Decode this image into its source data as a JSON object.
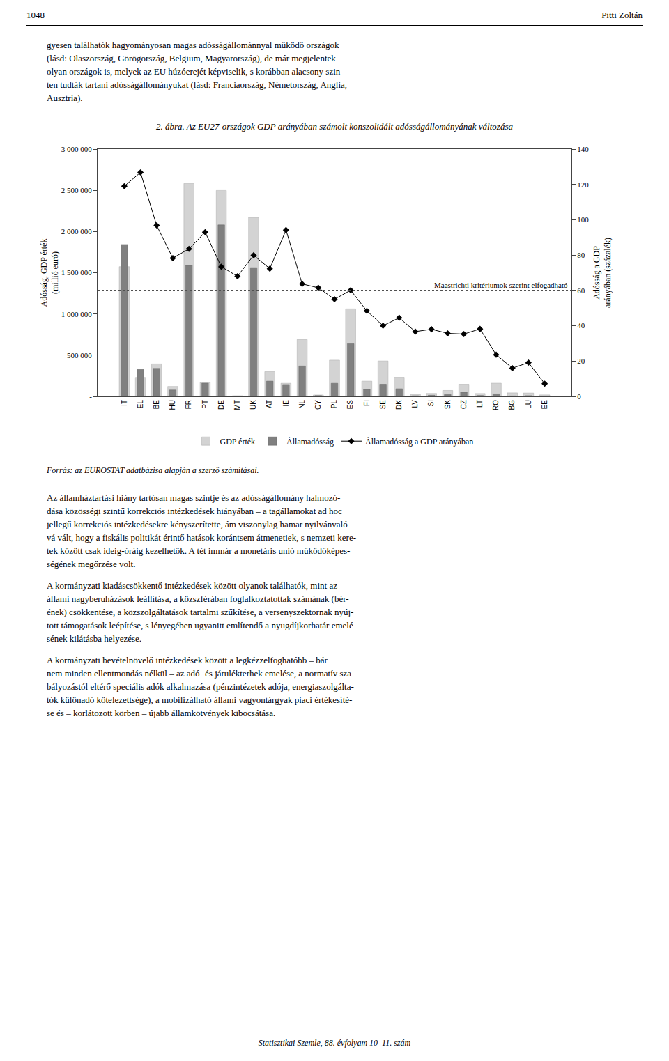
{
  "page": {
    "header_left": "1048",
    "header_right": "Pitti Zoltán",
    "top_text": "gyesen találhatók hagyományosan magas adósságállománnyal működő országok\n(lásd: Olaszország, Görögország, Belgium, Magyarország), de már megjelentek\nolyan országok is, melyek az EU húzóerejét képviselik, s korábban alacsony szin-\nten tudták tartani adósságállományukat (lásd: Franciaország, Németország, Anglia,\nAusztria).",
    "source": "Forrás: az EUROSTAT adatbázisa alapján a szerző számításai.",
    "paragraphs": [
      "Az államháztartási hiány tartósan magas szintje és az adósságállomány halmozó-\ndása közösségi szintű korrekciós intézkedések hiányában – a tagállamokat ad hoc\njellegű korrekciós intézkedésekre kényszerítette, ám viszonylag hamar nyilvánvaló-\nvá vált, hogy a fiskális politikát érintő hatások korántsem átmenetiek, s nemzeti kere-\ntek között csak ideig-óráig kezelhetők. A tét immár a monetáris unió működőképes-\nségének megőrzése volt.",
      "A kormányzati kiadáscsökkentő intézkedések között olyanok találhatók, mint az\nállami nagyberuházások leállítása, a közszférában foglalkoztatottak számának (bér-\nének) csökkentése, a közszolgáltatások tartalmi szűkítése, a versenyszektornak nyúj-\ntott támogatások leépítése, s lényegében ugyanitt említendő a nyugdíjkorhatár emelé-\nsének kilátásba helyezése.",
      "A kormányzati bevételnövelő intézkedések között a legkézzelfoghatóbb – bár\nnem minden ellentmondás nélkül – az adó- és járulékterhek emelése, a normatív sza-\nbályozástól eltérő speciális adók alkalmazása (pénzintézetek adója, energiaszolgálta-\ntók különadó kötelezettsége), a mobilizálható állami vagyontárgyak piaci értékesíté-\nse és – korlátozott körben – újabb államkötvények kibocsátása."
    ],
    "footer": "Statisztikai Szemle, 88. évfolyam 10–11. szám"
  },
  "chart_data": {
    "type": "bar",
    "title": "2. ábra. Az EU27-országok GDP arányában számolt konszolidált adósságállományának változása",
    "ylabel": "Adósság, GDP érték\n(millió euró)",
    "y2label": "Adósság a GDP\narányában (százalék)",
    "categories": [
      "IT",
      "EL",
      "BE",
      "HU",
      "FR",
      "PT",
      "DE",
      "MT",
      "UK",
      "AT",
      "IE",
      "NL",
      "CY",
      "PL",
      "ES",
      "FI",
      "SE",
      "DK",
      "LV",
      "SI",
      "SK",
      "CZ",
      "LT",
      "RO",
      "BG",
      "LU",
      "EE"
    ],
    "series": [
      {
        "name": "GDP érték",
        "type": "bar",
        "color": "#d3d3d3",
        "values": [
          1574000,
          230000,
          394000,
          121000,
          2582000,
          168000,
          2498000,
          7900,
          2172000,
          300000,
          159000,
          690000,
          17000,
          440000,
          1062000,
          185000,
          430000,
          232000,
          24000,
          36000,
          72000,
          148000,
          35000,
          160000,
          43000,
          41000,
          18000
        ]
      },
      {
        "name": "Államadósság",
        "type": "bar",
        "color": "#808080",
        "values": [
          1843000,
          328000,
          340000,
          78000,
          1590000,
          160000,
          2080000,
          4500,
          1562000,
          185000,
          144000,
          369000,
          10000,
          159000,
          639000,
          87000,
          148000,
          93000,
          7400,
          14000,
          22000,
          51000,
          11000,
          30000,
          5500,
          9000,
          1200
        ]
      },
      {
        "name": "Államadósság a GDP arányában",
        "type": "line",
        "axis": "y2",
        "color": "#000000",
        "marker": "diamond",
        "values": [
          119.0,
          126.8,
          96.8,
          78.3,
          83.5,
          93.0,
          73.4,
          68.0,
          79.9,
          72.3,
          94.2,
          63.7,
          61.5,
          55.0,
          60.1,
          48.4,
          40.0,
          44.5,
          36.7,
          38.0,
          35.7,
          35.3,
          38.2,
          23.6,
          16.0,
          19.1,
          7.2
        ]
      }
    ],
    "ylim": [
      0,
      3000000
    ],
    "yticks": [
      {
        "value": 0,
        "label": "-"
      },
      {
        "value": 500000,
        "label": "500 000"
      },
      {
        "value": 1000000,
        "label": "1 000 000"
      },
      {
        "value": 1500000,
        "label": "1 500 000"
      },
      {
        "value": 2000000,
        "label": "2 000 000"
      },
      {
        "value": 2500000,
        "label": "2 500 000"
      },
      {
        "value": 3000000,
        "label": "3 000 000"
      }
    ],
    "y2lim": [
      0,
      140
    ],
    "y2ticks": [
      0,
      20,
      40,
      60,
      80,
      100,
      120,
      140
    ],
    "reference_line": {
      "y": 60,
      "axis": "y2",
      "color": "#505050",
      "line_style": "dotted",
      "label": "Maastrichti kritériumok szerint elfogadható"
    },
    "grid": false,
    "legend": "bottom"
  }
}
